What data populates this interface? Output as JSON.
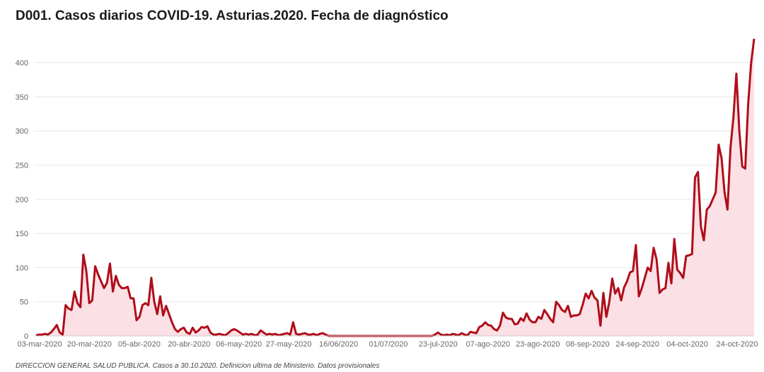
{
  "title": "D001. Casos diarios COVID-19. Asturias.2020. Fecha de diagnóstico",
  "source": "DIRECCION GENERAL SALUD PUBLICA.  Casos a 30.10.2020. Definicion ultima de Ministerio. Datos provisionales",
  "colors": {
    "line": "#b00d1a",
    "area": "#fadbe0",
    "grid": "#e8e8e8",
    "axis": "#cccccc"
  },
  "chart_data": {
    "type": "area",
    "start_date": "03-mar-2020",
    "end_date": "30-oct-2020",
    "x_tick_labels": [
      "03-mar-2020",
      "20-mar-2020",
      "05-abr-2020",
      "20-abr-2020",
      "06-may-2020",
      "27-may-2020",
      "16/06/2020",
      "01/07/2020",
      "23-jul-2020",
      "07-ago-2020",
      "23-ago-2020",
      "08-sep-2020",
      "24-sep-2020",
      "04-oct-2020",
      "24-oct-2020"
    ],
    "y_ticks": [
      0,
      50,
      100,
      150,
      200,
      250,
      300,
      350,
      400
    ],
    "ylim": [
      0,
      440
    ],
    "grid": true,
    "y": [
      1,
      2,
      2,
      3,
      2,
      5,
      10,
      16,
      5,
      2,
      45,
      40,
      38,
      65,
      48,
      42,
      119,
      95,
      48,
      52,
      102,
      90,
      80,
      70,
      78,
      106,
      65,
      88,
      75,
      70,
      70,
      72,
      55,
      55,
      23,
      28,
      45,
      48,
      45,
      85,
      50,
      32,
      58,
      30,
      44,
      32,
      20,
      10,
      6,
      10,
      12,
      5,
      3,
      12,
      5,
      8,
      13,
      12,
      14,
      5,
      2,
      2,
      3,
      2,
      1,
      4,
      8,
      10,
      8,
      5,
      2,
      3,
      2,
      3,
      1,
      2,
      8,
      5,
      2,
      3,
      2,
      3,
      1,
      2,
      3,
      4,
      2,
      20,
      3,
      2,
      3,
      4,
      2,
      2,
      3,
      1,
      3,
      4,
      2,
      0,
      0,
      0,
      0,
      0,
      0,
      0,
      0,
      0,
      0,
      0,
      0,
      0,
      0,
      0,
      0,
      0,
      0,
      0,
      0,
      0,
      0,
      0,
      0,
      0,
      0,
      0,
      0,
      0,
      0,
      0,
      0,
      0,
      0,
      0,
      0,
      2,
      5,
      2,
      1,
      2,
      1,
      3,
      2,
      1,
      4,
      2,
      1,
      6,
      5,
      4,
      13,
      15,
      20,
      16,
      15,
      10,
      8,
      15,
      34,
      27,
      25,
      25,
      17,
      18,
      26,
      22,
      33,
      24,
      20,
      20,
      28,
      25,
      38,
      32,
      25,
      20,
      50,
      45,
      38,
      35,
      44,
      28,
      30,
      30,
      32,
      46,
      62,
      55,
      66,
      56,
      52,
      15,
      63,
      28,
      50,
      84,
      62,
      70,
      52,
      71,
      80,
      93,
      95,
      133,
      58,
      70,
      85,
      100,
      95,
      129,
      112,
      63,
      68,
      70,
      107,
      77,
      142,
      97,
      92,
      85,
      117,
      118,
      120,
      232,
      240,
      160,
      140,
      185,
      190,
      200,
      210,
      280,
      260,
      210,
      185,
      275,
      320,
      384,
      300,
      248,
      245,
      340,
      400,
      435
    ]
  }
}
